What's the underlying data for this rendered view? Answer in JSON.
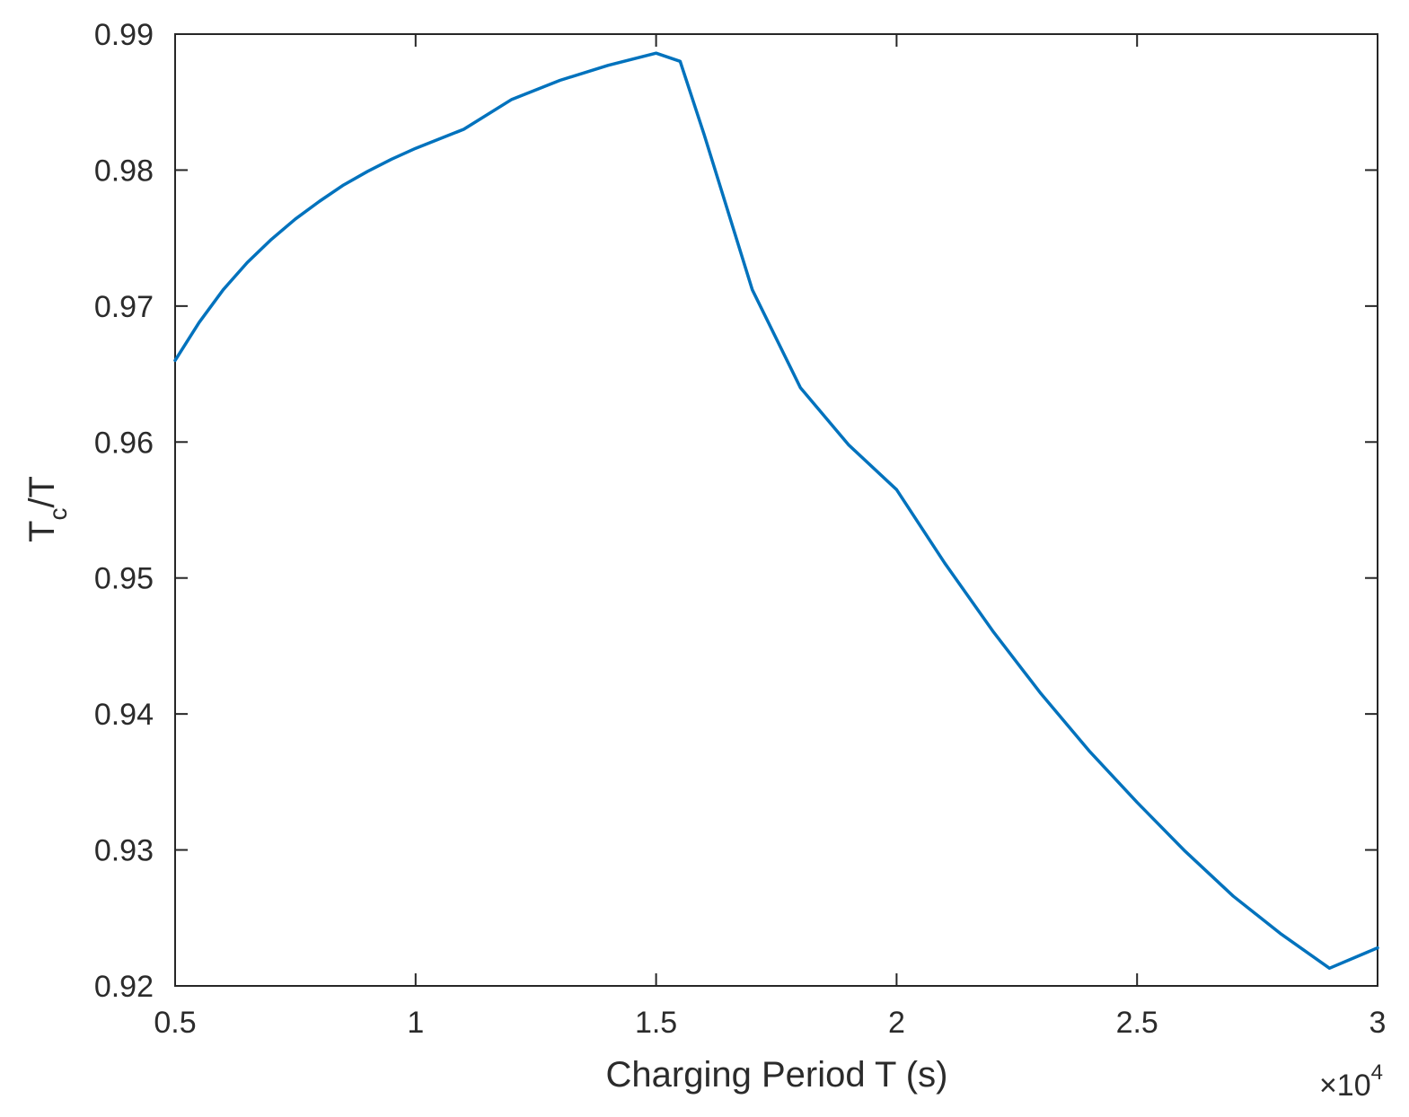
{
  "chart_data": {
    "type": "line",
    "title": "",
    "xlabel": "Charging Period T (s)",
    "ylabel": {
      "main": "T",
      "subscript": "c",
      "suffix": "/T"
    },
    "x_exponent": {
      "prefix": "×10",
      "power": "4"
    },
    "xlim": [
      0.5,
      3.0
    ],
    "ylim": [
      0.92,
      0.99
    ],
    "x_ticks": [
      0.5,
      1.0,
      1.5,
      2.0,
      2.5,
      3.0
    ],
    "x_tick_labels": [
      "0.5",
      "1",
      "1.5",
      "2",
      "2.5",
      "3"
    ],
    "y_ticks": [
      0.92,
      0.93,
      0.94,
      0.95,
      0.96,
      0.97,
      0.98,
      0.99
    ],
    "y_tick_labels": [
      "0.92",
      "0.93",
      "0.94",
      "0.95",
      "0.96",
      "0.97",
      "0.98",
      "0.99"
    ],
    "grid": false,
    "line_color": "#0072bd",
    "axis_color": "#262626",
    "series": [
      {
        "x": [
          0.5,
          0.55,
          0.6,
          0.65,
          0.7,
          0.75,
          0.8,
          0.85,
          0.9,
          0.95,
          1.0,
          1.1,
          1.2,
          1.3,
          1.4,
          1.5,
          1.55,
          1.6,
          1.7,
          1.8,
          1.9,
          2.0,
          2.1,
          2.2,
          2.3,
          2.4,
          2.5,
          2.6,
          2.7,
          2.8,
          2.9,
          3.0
        ],
        "y": [
          0.966,
          0.9688,
          0.9712,
          0.9732,
          0.9749,
          0.9764,
          0.9777,
          0.9789,
          0.9799,
          0.9808,
          0.9816,
          0.983,
          0.9852,
          0.9866,
          0.9877,
          0.9886,
          0.988,
          0.9826,
          0.9712,
          0.964,
          0.9598,
          0.9565,
          0.9511,
          0.9461,
          0.9415,
          0.9373,
          0.9335,
          0.9299,
          0.9266,
          0.9238,
          0.9213,
          0.9228
        ]
      }
    ]
  }
}
